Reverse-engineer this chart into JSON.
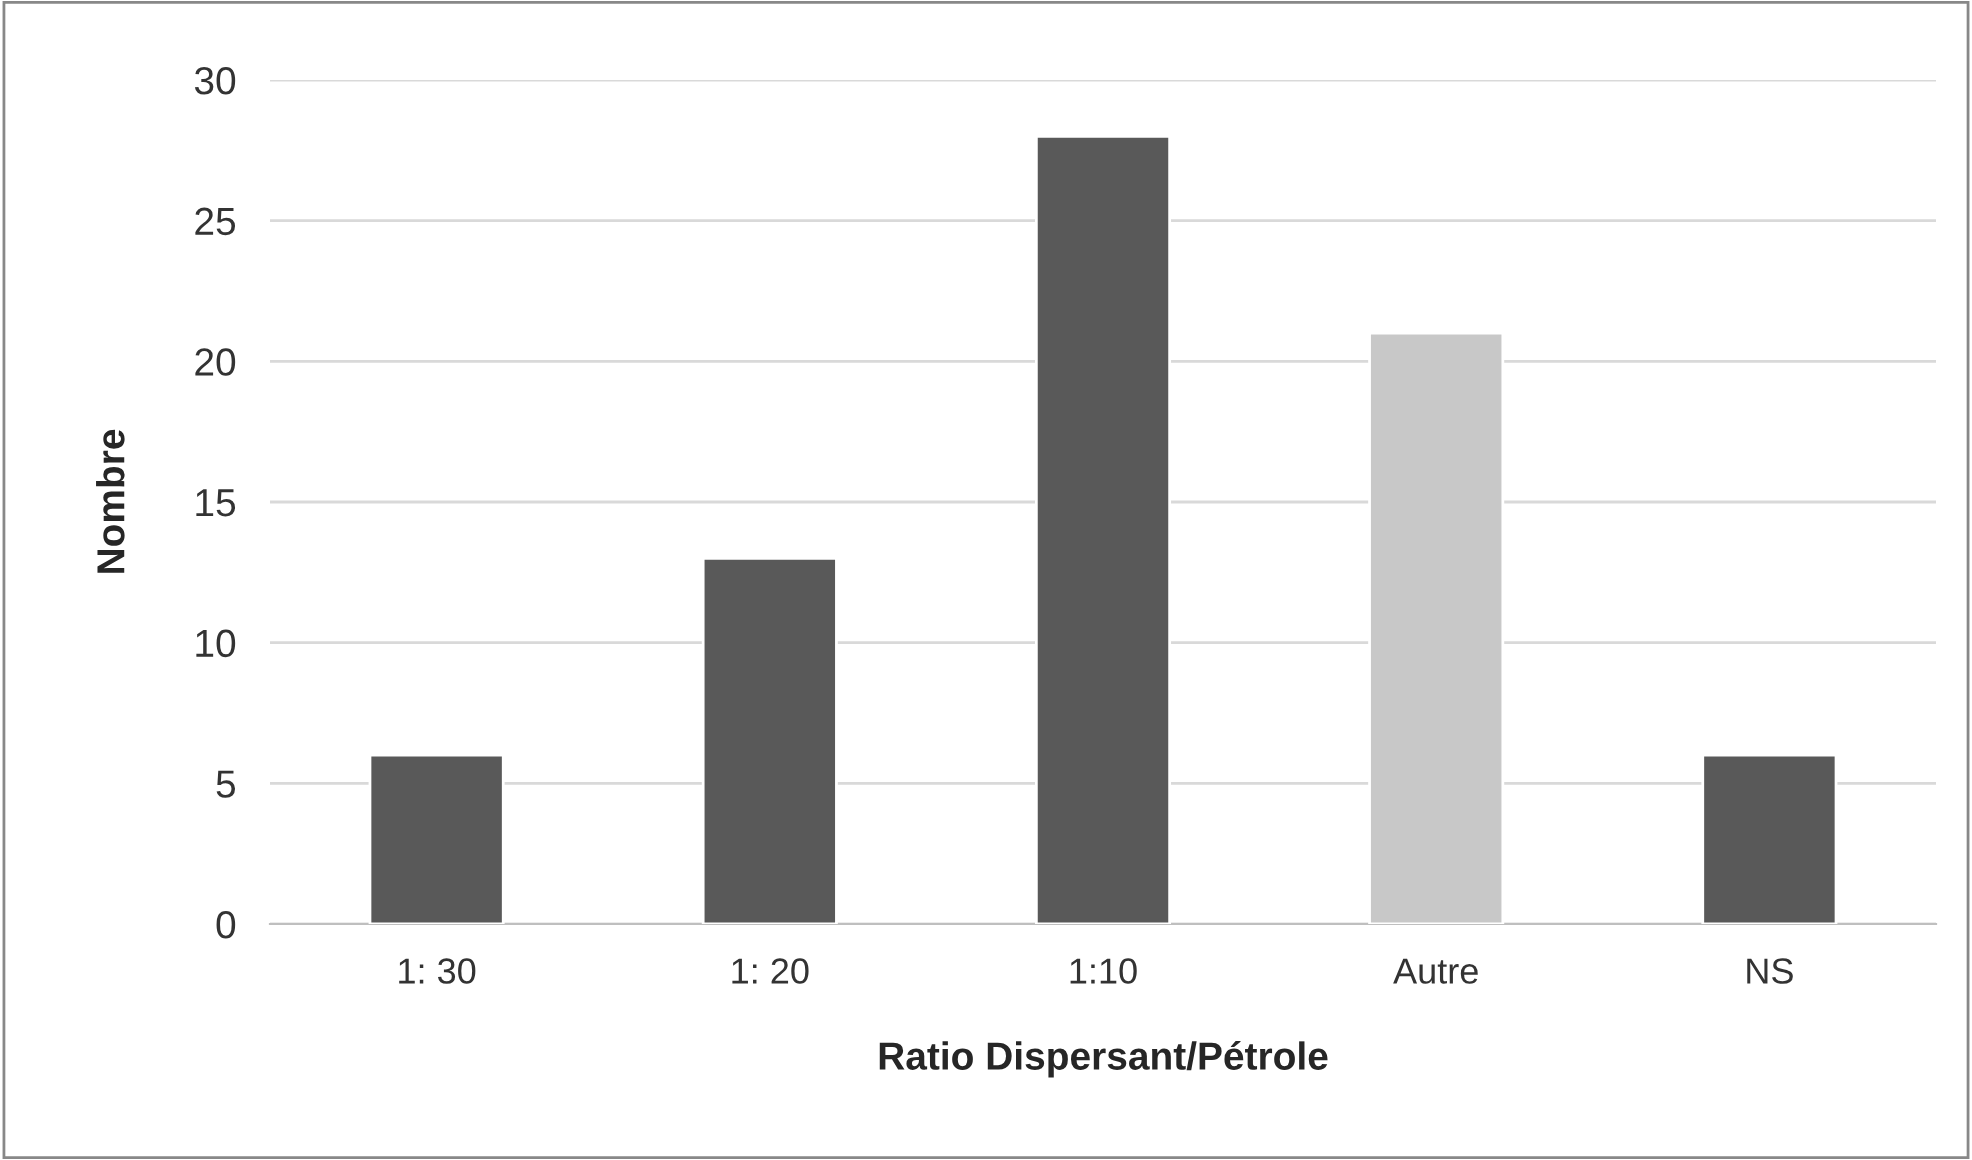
{
  "chart_data": {
    "type": "bar",
    "xlabel": "Ratio Dispersant/Pétrole",
    "ylabel": "Nombre",
    "categories": [
      "1: 30",
      "1: 20",
      "1:10",
      "Autre",
      "NS"
    ],
    "values": [
      6,
      13,
      28,
      21,
      6
    ],
    "colors": [
      "#595959",
      "#595959",
      "#595959",
      "#c8c8c8",
      "#595959"
    ],
    "ylim": [
      0,
      30
    ],
    "yticks": [
      0,
      5,
      10,
      15,
      20,
      25,
      30
    ],
    "grid": "y"
  }
}
